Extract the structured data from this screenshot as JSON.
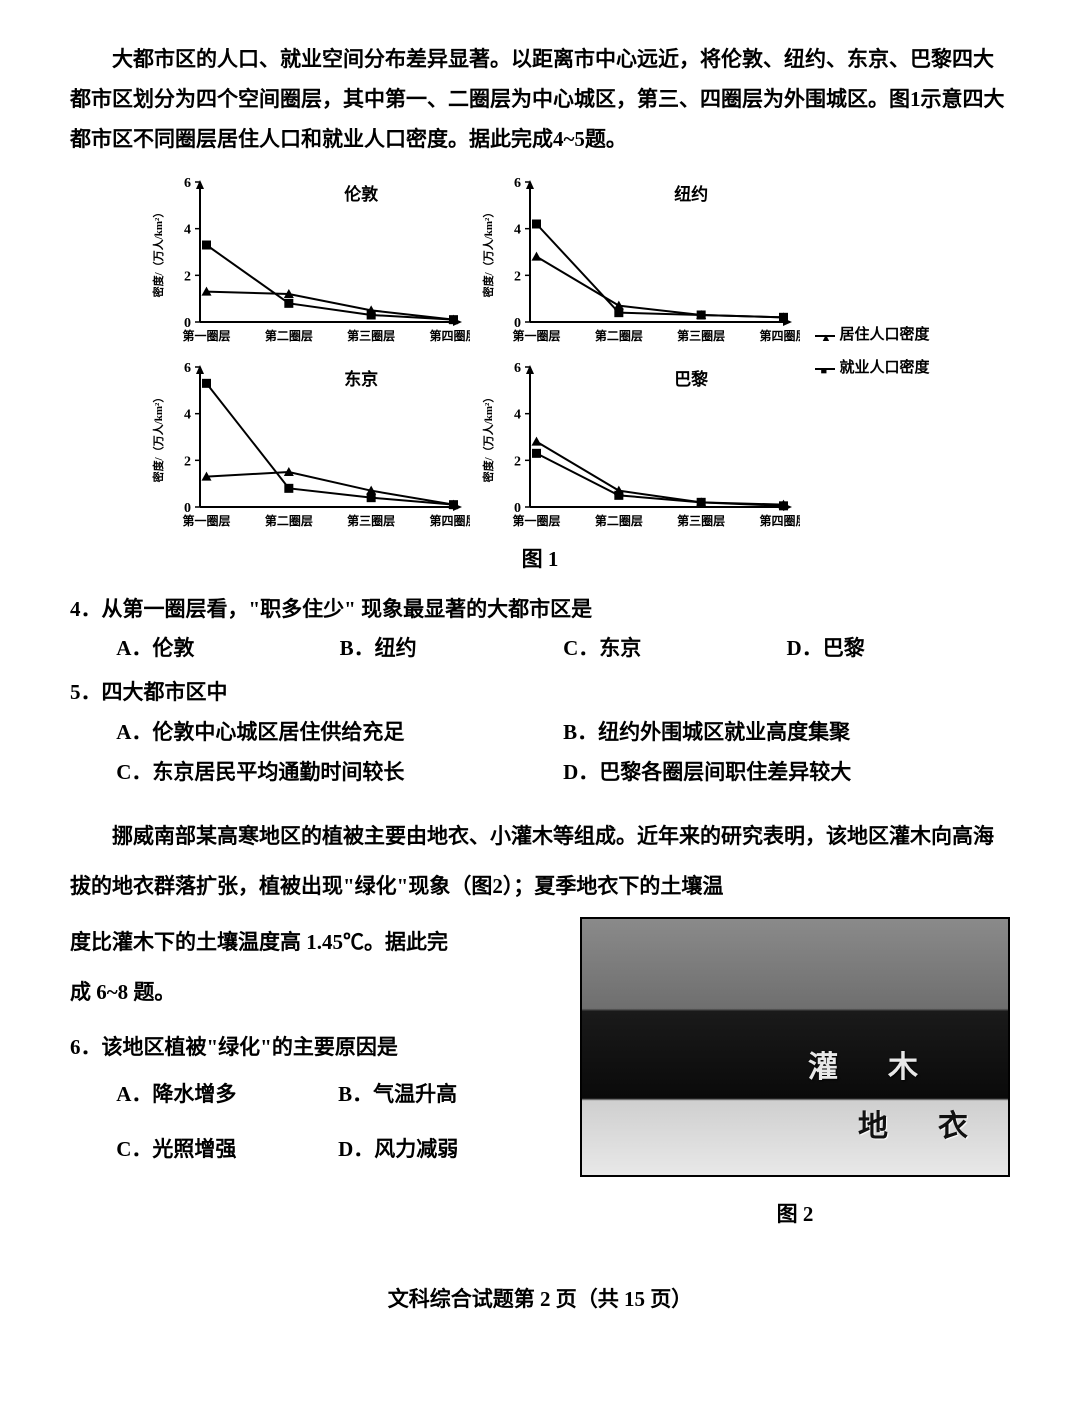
{
  "intro": "大都市区的人口、就业空间分布差异显著。以距离市中心远近，将伦敦、纽约、东京、巴黎四大都市区划分为四个空间圈层，其中第一、二圈层为中心城区，第三、四圈层为外围城区。图1示意四大都市区不同圈层居住人口和就业人口密度。据此完成4~5题。",
  "figure1": {
    "caption": "图 1",
    "ylabel": "密度/（万人/km²）",
    "ylim": [
      0,
      6
    ],
    "yticks": [
      0,
      2,
      4,
      6
    ],
    "xticks": [
      "第一圈层",
      "第二圈层",
      "第三圈层",
      "第四圈层"
    ],
    "line_color": "#000000",
    "marker_res": "triangle",
    "marker_emp": "square",
    "legend": {
      "res": "居住人口密度",
      "emp": "就业人口密度"
    },
    "panels": [
      {
        "title": "伦敦",
        "res": [
          1.3,
          1.2,
          0.5,
          0.1
        ],
        "emp": [
          3.3,
          0.8,
          0.3,
          0.1
        ]
      },
      {
        "title": "纽约",
        "res": [
          2.8,
          0.7,
          0.3,
          0.2
        ],
        "emp": [
          4.2,
          0.4,
          0.3,
          0.2
        ]
      },
      {
        "title": "东京",
        "res": [
          1.3,
          1.5,
          0.7,
          0.1
        ],
        "emp": [
          5.3,
          0.8,
          0.4,
          0.1
        ]
      },
      {
        "title": "巴黎",
        "res": [
          2.8,
          0.7,
          0.2,
          0.1
        ],
        "emp": [
          2.3,
          0.5,
          0.2,
          0.05
        ]
      }
    ]
  },
  "q4": {
    "stem": "4．从第一圈层看，\"职多住少\" 现象最显著的大都市区是",
    "a": "A．伦敦",
    "b": "B．纽约",
    "c": "C．东京",
    "d": "D．巴黎"
  },
  "q5": {
    "stem": "5．四大都市区中",
    "a": "A．伦敦中心城区居住供给充足",
    "b": "B．纽约外围城区就业高度集聚",
    "c": "C．东京居民平均通勤时间较长",
    "d": "D．巴黎各圈层间职住差异较大"
  },
  "passage2_a": "挪威南部某高寒地区的植被主要由地衣、小灌木等组成。近年来的研究表明，该地区灌木向高海拔的地衣群落扩张，植被出现\"绿化\"现象（图2）；夏季地衣下的土壤温",
  "passage2_b": "度比灌木下的土壤温度高 1.45℃。据此完",
  "passage2_c": "成 6~8 题。",
  "q6": {
    "stem": "6．该地区植被\"绿化\"的主要原因是",
    "a": "A．降水增多",
    "b": "B．气温升高",
    "c": "C．光照增强",
    "d": "D．风力减弱"
  },
  "figure2": {
    "caption": "图 2",
    "label_shrub": "灌　木",
    "label_lichen": "地　衣"
  },
  "footer": "文科综合试题第 2 页（共 15 页）"
}
